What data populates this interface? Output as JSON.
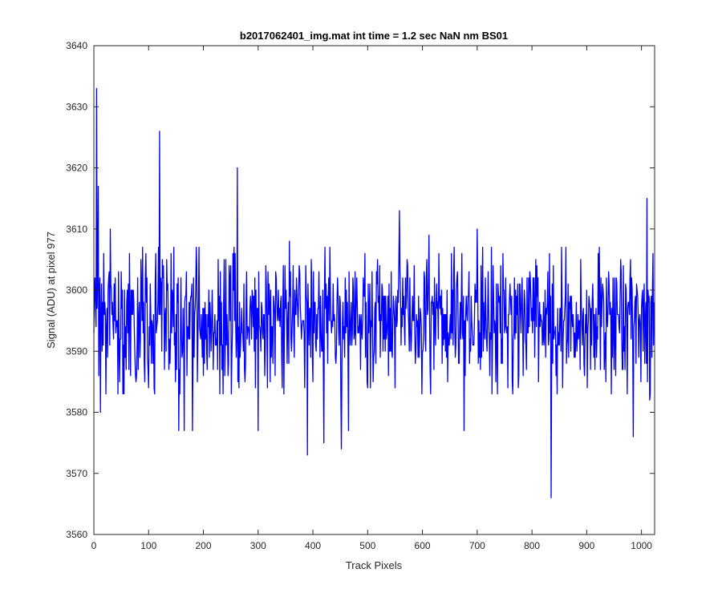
{
  "chart_data": {
    "type": "line",
    "title": "b2017062401_img.mat int time = 1.2 sec  NaN nm BS01",
    "xlabel": "Track Pixels",
    "ylabel": "Signal (ADU) at pixel 977",
    "xlim": [
      0,
      1024
    ],
    "ylim": [
      3560,
      3640
    ],
    "xticks": [
      0,
      100,
      200,
      300,
      400,
      500,
      600,
      700,
      800,
      900,
      1000
    ],
    "yticks": [
      3560,
      3570,
      3580,
      3590,
      3600,
      3610,
      3620,
      3630,
      3640
    ],
    "grid": false,
    "legend": "none",
    "line_color": "#0000ff",
    "series": [
      {
        "n_points": 1024,
        "mean": 3595,
        "noise_std": 5.5,
        "seed": 977,
        "extremes": [
          {
            "x": 5,
            "y": 3633
          },
          {
            "x": 8,
            "y": 3617
          },
          {
            "x": 12,
            "y": 3580
          },
          {
            "x": 30,
            "y": 3610
          },
          {
            "x": 120,
            "y": 3626
          },
          {
            "x": 155,
            "y": 3577
          },
          {
            "x": 165,
            "y": 3577
          },
          {
            "x": 180,
            "y": 3577
          },
          {
            "x": 262,
            "y": 3620
          },
          {
            "x": 300,
            "y": 3577
          },
          {
            "x": 357,
            "y": 3608
          },
          {
            "x": 390,
            "y": 3573
          },
          {
            "x": 420,
            "y": 3575
          },
          {
            "x": 452,
            "y": 3574
          },
          {
            "x": 465,
            "y": 3577
          },
          {
            "x": 558,
            "y": 3613
          },
          {
            "x": 612,
            "y": 3609
          },
          {
            "x": 676,
            "y": 3577
          },
          {
            "x": 700,
            "y": 3610
          },
          {
            "x": 835,
            "y": 3566
          },
          {
            "x": 985,
            "y": 3576
          },
          {
            "x": 1010,
            "y": 3615
          },
          {
            "x": 1015,
            "y": 3582
          }
        ]
      }
    ]
  }
}
